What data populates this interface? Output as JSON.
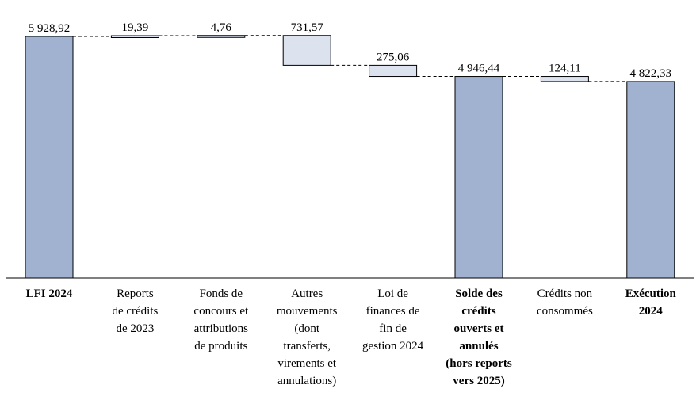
{
  "chart_data": {
    "type": "bar",
    "subtype": "waterfall",
    "colors": {
      "total": "#a0b2cf",
      "delta": "#dce3ef",
      "stroke": "#000000"
    },
    "bars": [
      {
        "category": [
          "LFI 2024"
        ],
        "bold": true,
        "kind": "total",
        "value": 5928.92,
        "label": "5 928,92"
      },
      {
        "category": [
          "Reports",
          "de crédits",
          "de 2023"
        ],
        "bold": false,
        "kind": "delta",
        "value": 19.39,
        "label": "19,39"
      },
      {
        "category": [
          "Fonds de",
          "concours et",
          "attributions",
          "de produits"
        ],
        "bold": false,
        "kind": "delta",
        "value": 4.76,
        "label": "4,76"
      },
      {
        "category": [
          "Autres",
          "mouvements",
          "(dont",
          "transferts,",
          "virements et",
          "annulations)"
        ],
        "bold": false,
        "kind": "delta",
        "value": -731.57,
        "label": "731,57"
      },
      {
        "category": [
          "Loi de",
          "finances de",
          "fin de",
          "gestion 2024"
        ],
        "bold": false,
        "kind": "delta",
        "value": -275.06,
        "label": "275,06"
      },
      {
        "category": [
          "Solde des",
          "crédits",
          "ouverts et",
          "annulés",
          "(hors reports",
          "vers 2025)"
        ],
        "bold": true,
        "kind": "total",
        "value": 4946.44,
        "label": "4 946,44"
      },
      {
        "category": [
          "Crédits non",
          "consommés"
        ],
        "bold": false,
        "kind": "delta",
        "value": -124.11,
        "label": "124,11"
      },
      {
        "category": [
          "Exécution",
          "2024"
        ],
        "bold": true,
        "kind": "total",
        "value": 4822.33,
        "label": "4 822,33"
      }
    ]
  }
}
